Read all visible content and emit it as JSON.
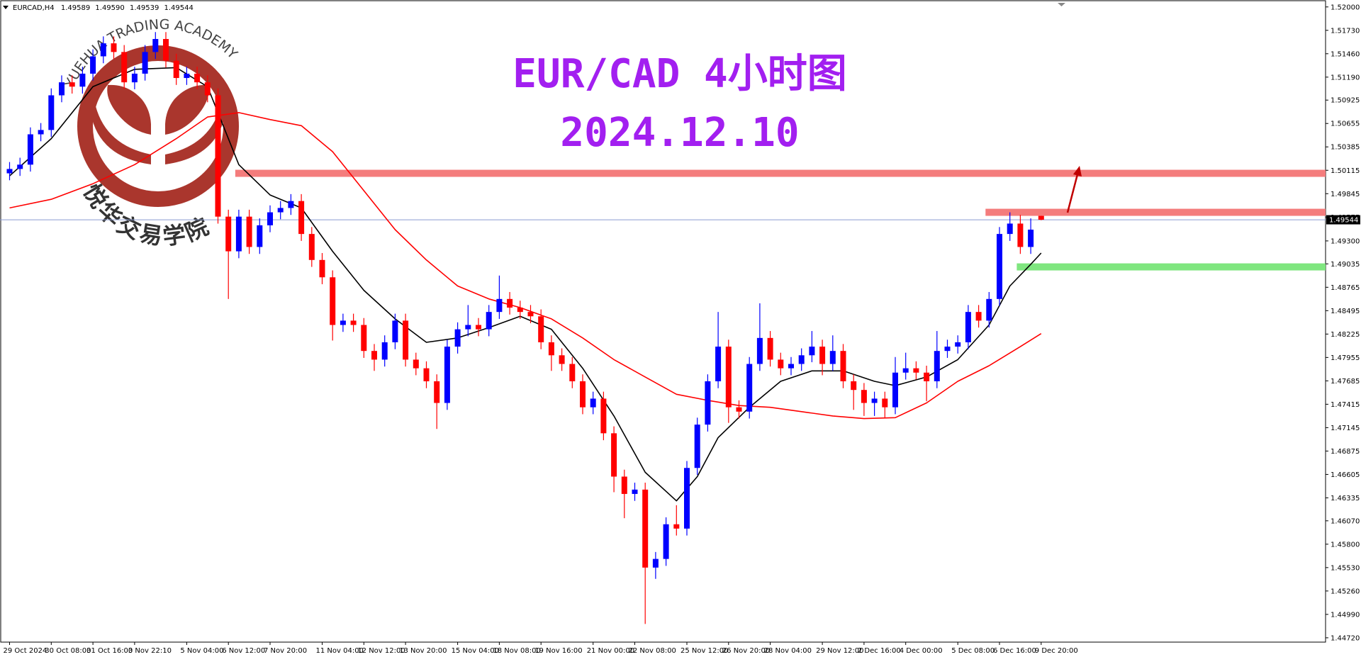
{
  "chart_data": {
    "type": "candlestick",
    "header": {
      "symbol": "EURCAD,H4",
      "ohlc": [
        "1.49589",
        "1.49590",
        "1.49539",
        "1.49544"
      ]
    },
    "title": "EUR/CAD 4小时图",
    "subtitle": "2024.12.10",
    "watermark": {
      "text_top": "YUEHUA TRADING ACADEMY",
      "text_bottom": "悦华交易学院"
    },
    "categories": [
      "29 Oct 2024",
      null,
      null,
      null,
      "30 Oct 08:00",
      null,
      null,
      null,
      "31 Oct 16:00",
      null,
      null,
      null,
      "3 Nov 22:10",
      null,
      null,
      null,
      null,
      "5 Nov 04:00",
      null,
      null,
      null,
      "6 Nov 12:00",
      null,
      null,
      null,
      "7 Nov 20:00",
      null,
      null,
      null,
      null,
      "11 Nov 04:00",
      null,
      null,
      null,
      "12 Nov 12:00",
      null,
      null,
      null,
      "13 Nov 20:00",
      null,
      null,
      null,
      null,
      "15 Nov 04:00",
      null,
      null,
      null,
      "18 Nov 08:00",
      null,
      null,
      null,
      "19 Nov 16:00",
      null,
      null,
      null,
      null,
      "21 Nov 00:00",
      null,
      null,
      null,
      "22 Nov 08:00",
      null,
      null,
      null,
      null,
      "25 Nov 12:00",
      null,
      null,
      null,
      "26 Nov 20:00",
      null,
      null,
      null,
      "28 Nov 04:00",
      null,
      null,
      null,
      null,
      "29 Nov 12:00",
      null,
      null,
      null,
      "2 Dec 16:00",
      null,
      null,
      null,
      "4 Dec 00:00",
      null,
      null,
      null,
      null,
      "5 Dec 08:00",
      null,
      null,
      null,
      "6 Dec 16:00",
      null,
      null,
      null,
      "9 Dec 20:00"
    ],
    "open": [
      1.5008,
      1.5013,
      1.5018,
      1.5053,
      1.5058,
      1.5098,
      1.5113,
      1.5108,
      1.5123,
      1.5143,
      1.5158,
      1.5148,
      1.5113,
      1.5123,
      1.5148,
      1.5163,
      1.5138,
      1.5118,
      1.5123,
      1.5113,
      1.5098,
      1.4958,
      1.4918,
      1.4958,
      1.4923,
      1.4948,
      1.4963,
      1.4968,
      1.4976,
      1.4938,
      1.4908,
      1.4888,
      1.4833,
      1.4838,
      1.4833,
      1.4803,
      1.4793,
      1.4813,
      1.4838,
      1.4793,
      1.4783,
      1.4768,
      1.4743,
      1.4808,
      1.4828,
      1.4833,
      1.4828,
      1.4848,
      1.4863,
      1.4853,
      1.4848,
      1.4843,
      1.4813,
      1.4798,
      1.4788,
      1.4768,
      1.4738,
      1.4748,
      1.4708,
      1.4658,
      1.4638,
      1.4643,
      1.4553,
      1.4563,
      1.4603,
      1.4598,
      1.4668,
      1.4718,
      1.4768,
      1.4808,
      1.4738,
      1.4733,
      1.4788,
      1.4818,
      1.4793,
      1.4783,
      1.4788,
      1.4798,
      1.4808,
      1.4788,
      1.4803,
      1.4768,
      1.4758,
      1.4743,
      1.4748,
      1.4738,
      1.4778,
      1.4783,
      1.4778,
      1.4768,
      1.4803,
      1.4808,
      1.4813,
      1.4848,
      1.4838,
      1.4863,
      1.4938,
      1.495,
      1.4923,
      1.49589
    ],
    "high": [
      1.5021,
      1.5026,
      1.5061,
      1.5066,
      1.5106,
      1.5121,
      1.5121,
      1.5131,
      1.5151,
      1.5166,
      1.5166,
      1.5156,
      1.5131,
      1.5156,
      1.5171,
      1.5171,
      1.5146,
      1.5131,
      1.5131,
      1.5121,
      1.5106,
      1.4966,
      1.4966,
      1.4966,
      1.4956,
      1.4971,
      1.4976,
      1.4984,
      1.4984,
      1.4946,
      1.4916,
      1.4896,
      1.4846,
      1.4846,
      1.4841,
      1.4811,
      1.4821,
      1.4846,
      1.4846,
      1.4801,
      1.4791,
      1.4776,
      1.4816,
      1.4836,
      1.4856,
      1.4841,
      1.4856,
      1.489,
      1.4871,
      1.4861,
      1.4856,
      1.4851,
      1.4821,
      1.4806,
      1.4796,
      1.4776,
      1.4756,
      1.4756,
      1.4716,
      1.4666,
      1.4651,
      1.4651,
      1.4571,
      1.4611,
      1.4625,
      1.4676,
      1.4726,
      1.4776,
      1.4848,
      1.4816,
      1.4746,
      1.4796,
      1.4858,
      1.4826,
      1.4801,
      1.4796,
      1.4806,
      1.4826,
      1.4816,
      1.4821,
      1.4811,
      1.4776,
      1.4766,
      1.4756,
      1.4756,
      1.4796,
      1.4801,
      1.4791,
      1.4786,
      1.4826,
      1.4816,
      1.4821,
      1.4856,
      1.4856,
      1.4871,
      1.4946,
      1.4963,
      1.496,
      1.4956,
      1.4959
    ],
    "low": [
      1.5,
      1.5005,
      1.501,
      1.5045,
      1.505,
      1.509,
      1.51,
      1.51,
      1.5115,
      1.5135,
      1.514,
      1.5105,
      1.5105,
      1.5115,
      1.514,
      1.513,
      1.511,
      1.511,
      1.5105,
      1.509,
      1.495,
      1.4863,
      1.491,
      1.4915,
      1.4915,
      1.494,
      1.4955,
      1.496,
      1.493,
      1.49,
      1.488,
      1.4815,
      1.4825,
      1.4825,
      1.4795,
      1.478,
      1.4785,
      1.4805,
      1.4785,
      1.4775,
      1.476,
      1.4713,
      1.4735,
      1.48,
      1.482,
      1.482,
      1.482,
      1.484,
      1.4845,
      1.484,
      1.4835,
      1.4805,
      1.478,
      1.478,
      1.476,
      1.473,
      1.473,
      1.47,
      1.464,
      1.461,
      1.463,
      1.4488,
      1.454,
      1.4555,
      1.459,
      1.459,
      1.466,
      1.471,
      1.476,
      1.472,
      1.4725,
      1.4725,
      1.478,
      1.4785,
      1.4775,
      1.4775,
      1.478,
      1.479,
      1.4775,
      1.478,
      1.476,
      1.4735,
      1.4728,
      1.4728,
      1.4725,
      1.473,
      1.477,
      1.477,
      1.4745,
      1.476,
      1.4795,
      1.48,
      1.4805,
      1.483,
      1.483,
      1.4855,
      1.493,
      1.4915,
      1.4915,
      1.49539
    ],
    "close": [
      1.5013,
      1.5018,
      1.5053,
      1.5058,
      1.5098,
      1.5113,
      1.5108,
      1.5123,
      1.5143,
      1.5158,
      1.5148,
      1.5113,
      1.5123,
      1.5148,
      1.5163,
      1.5138,
      1.5118,
      1.5123,
      1.5113,
      1.5098,
      1.4958,
      1.4918,
      1.4958,
      1.4923,
      1.4948,
      1.4963,
      1.4968,
      1.4976,
      1.4938,
      1.4908,
      1.4888,
      1.4833,
      1.4838,
      1.4833,
      1.4803,
      1.4793,
      1.4813,
      1.4838,
      1.4793,
      1.4783,
      1.4768,
      1.4743,
      1.4808,
      1.4828,
      1.4833,
      1.4828,
      1.4848,
      1.4863,
      1.4853,
      1.4848,
      1.4843,
      1.4813,
      1.4798,
      1.4788,
      1.4768,
      1.4738,
      1.4748,
      1.4708,
      1.4658,
      1.4638,
      1.4643,
      1.4553,
      1.4563,
      1.4603,
      1.4598,
      1.4668,
      1.4718,
      1.4768,
      1.4808,
      1.4738,
      1.4733,
      1.4788,
      1.4818,
      1.4793,
      1.4783,
      1.4788,
      1.4798,
      1.4808,
      1.4788,
      1.4803,
      1.4768,
      1.4758,
      1.4743,
      1.4748,
      1.4738,
      1.4778,
      1.4783,
      1.4778,
      1.4768,
      1.4803,
      1.4808,
      1.4813,
      1.4848,
      1.4838,
      1.4863,
      1.4938,
      1.495,
      1.4923,
      1.4943,
      1.49544
    ],
    "up_color": "#0000ff",
    "down_color": "#ff0000",
    "series": [
      {
        "color": "#000000",
        "x": [
          0,
          4,
          8,
          12,
          16,
          19,
          22,
          25,
          28,
          31,
          34,
          37,
          40,
          43,
          46,
          49,
          52,
          55,
          58,
          61,
          64,
          66,
          68,
          71,
          74,
          77,
          80,
          83,
          85,
          88,
          91,
          94,
          96,
          98,
          99
        ],
        "values": [
          1.5005,
          1.5048,
          1.5108,
          1.5128,
          1.513,
          1.5108,
          1.5018,
          1.4983,
          1.4968,
          1.4918,
          1.4873,
          1.484,
          1.4813,
          1.4818,
          1.483,
          1.4843,
          1.4828,
          1.4783,
          1.4728,
          1.4663,
          1.463,
          1.4658,
          1.4703,
          1.4738,
          1.4768,
          1.478,
          1.478,
          1.4768,
          1.4763,
          1.4773,
          1.4793,
          1.4833,
          1.4878,
          1.4903,
          1.4916
        ]
      },
      {
        "color": "#ff0000",
        "x": [
          0,
          4,
          8,
          12,
          16,
          19,
          22,
          25,
          28,
          31,
          34,
          37,
          40,
          43,
          46,
          49,
          52,
          55,
          58,
          61,
          64,
          67,
          70,
          73,
          76,
          79,
          82,
          85,
          88,
          91,
          94,
          97,
          99
        ],
        "values": [
          1.4968,
          1.4978,
          1.4996,
          1.5018,
          1.5048,
          1.5073,
          1.5078,
          1.507,
          1.5063,
          1.5033,
          1.4988,
          1.4943,
          1.4908,
          1.4878,
          1.4863,
          1.4853,
          1.484,
          1.4818,
          1.4793,
          1.4773,
          1.4753,
          1.4746,
          1.474,
          1.4738,
          1.4733,
          1.4728,
          1.4725,
          1.4726,
          1.4743,
          1.4768,
          1.4786,
          1.4808,
          1.4823
        ]
      }
    ],
    "levels": [
      {
        "value": 1.5008,
        "from": 22,
        "color": "#f47c7c"
      },
      {
        "value": 1.4963,
        "from": 94,
        "color": "#f47c7c"
      },
      {
        "value": 1.49,
        "from": 97,
        "color": "#7fe67f"
      }
    ],
    "price_line_color": "#8a9bd0",
    "ylim": [
      1.4467,
      1.5208
    ],
    "yticks": [
      {
        "value": 1.52,
        "label": "1.52000"
      },
      {
        "value": 1.5173,
        "label": "1.51730"
      },
      {
        "value": 1.5146,
        "label": "1.51460"
      },
      {
        "value": 1.5119,
        "label": "1.51190"
      },
      {
        "value": 1.50925,
        "label": "1.50925"
      },
      {
        "value": 1.50655,
        "label": "1.50655"
      },
      {
        "value": 1.50385,
        "label": "1.50385"
      },
      {
        "value": 1.50115,
        "label": "1.50115"
      },
      {
        "value": 1.49845,
        "label": "1.49845"
      },
      {
        "value": 1.49575,
        "label": "1.49575"
      },
      {
        "value": 1.493,
        "label": "1.49300"
      },
      {
        "value": 1.49035,
        "label": "1.49035"
      },
      {
        "value": 1.48765,
        "label": "1.48765"
      },
      {
        "value": 1.48495,
        "label": "1.48495"
      },
      {
        "value": 1.48225,
        "label": "1.48225"
      },
      {
        "value": 1.47955,
        "label": "1.47955"
      },
      {
        "value": 1.47685,
        "label": "1.47685"
      },
      {
        "value": 1.47415,
        "label": "1.47415"
      },
      {
        "value": 1.47145,
        "label": "1.47145"
      },
      {
        "value": 1.46875,
        "label": "1.46875"
      },
      {
        "value": 1.46605,
        "label": "1.46605"
      },
      {
        "value": 1.46335,
        "label": "1.46335"
      },
      {
        "value": 1.4607,
        "label": "1.46070"
      },
      {
        "value": 1.458,
        "label": "1.45800"
      },
      {
        "value": 1.4553,
        "label": "1.45530"
      },
      {
        "value": 1.4526,
        "label": "1.45260"
      },
      {
        "value": 1.4499,
        "label": "1.44990"
      },
      {
        "value": 1.4472,
        "label": "1.44720"
      }
    ],
    "grid": false
  }
}
